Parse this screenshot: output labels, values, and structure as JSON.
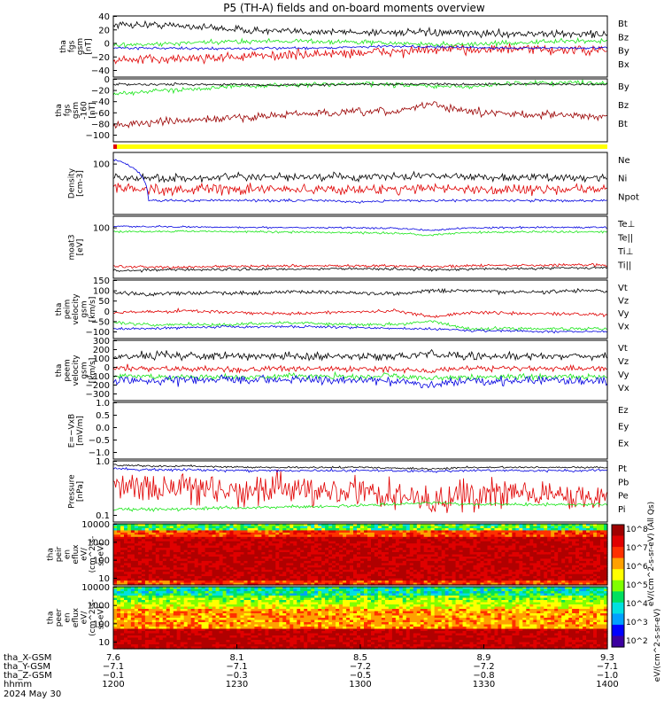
{
  "title": "P5 (TH-A) fields and on-board moments overview",
  "footer_date": "2024 May 30",
  "colors": {
    "black": "#000000",
    "red": "#e00000",
    "darkred": "#9a0000",
    "green": "#19e619",
    "blue": "#0000e0",
    "yellow": "#ffff00"
  },
  "chart_data": [
    {
      "type": "line",
      "ylabel": [
        "tha",
        "fgs",
        "gsm",
        "[nT]"
      ],
      "ytick_labels": [
        "40",
        "20",
        "0",
        "−20",
        "−40"
      ],
      "ylim": [
        -50,
        55
      ],
      "series": [
        {
          "name": "Bt",
          "color": "black",
          "base": [
            40,
            40,
            38,
            34,
            30,
            28,
            28,
            27,
            27,
            26,
            25,
            25,
            24,
            24,
            24
          ],
          "noise": 6
        },
        {
          "name": "Bz",
          "color": "red",
          "base": [
            -22,
            -20,
            -18,
            -16,
            -14,
            -12,
            -10,
            -8,
            -6,
            -4,
            -2,
            -2,
            -3,
            -4,
            -5
          ],
          "noise": 8
        },
        {
          "name": "By",
          "color": "green",
          "base": [
            5,
            6,
            8,
            10,
            12,
            12,
            11,
            10,
            8,
            6,
            6,
            8,
            10,
            12,
            12
          ],
          "noise": 4
        },
        {
          "name": "Bx",
          "color": "blue",
          "base": [
            0,
            0,
            -1,
            -1,
            -1,
            0,
            0,
            2,
            3,
            2,
            1,
            0,
            0,
            0,
            0
          ],
          "noise": 2
        }
      ]
    },
    {
      "type": "line",
      "ylabel": [
        "tha",
        "fgs",
        "gsm",
        "-160",
        "[nT]"
      ],
      "ytick_labels": [
        "0",
        "−20",
        "−40",
        "−60",
        "−80",
        "−100"
      ],
      "ylim": [
        -110,
        5
      ],
      "series": [
        {
          "name": "By",
          "color": "green",
          "base": [
            -22,
            -18,
            -14,
            -10,
            -8,
            -6,
            -5,
            -4,
            -6,
            -8,
            -10,
            -4,
            -2,
            -2,
            -2
          ],
          "noise": 4
        },
        {
          "name": "Bz",
          "color": "darkred",
          "base": [
            -80,
            -75,
            -72,
            -68,
            -64,
            -60,
            -58,
            -56,
            -55,
            -40,
            -55,
            -58,
            -60,
            -62,
            -64
          ],
          "noise": 7
        },
        {
          "name": "Bt",
          "color": "black",
          "base": [
            -5,
            -5,
            -5,
            -5,
            -6,
            -6,
            -6,
            -5,
            -5,
            -4,
            -5,
            -5,
            -5,
            -5,
            -5
          ],
          "noise": 2
        }
      ]
    },
    {
      "type": "line",
      "ylabel": [
        "Density",
        "[cm-3]"
      ],
      "ytick_labels": [
        "100"
      ],
      "yscale": "log",
      "ylim": [
        0.5,
        150
      ],
      "series": [
        {
          "name": "Ne",
          "color": "red",
          "base": [
            6,
            5,
            5,
            5,
            5,
            5,
            5,
            5,
            5,
            6,
            5,
            5,
            5,
            5,
            5
          ],
          "noise": 0.2
        },
        {
          "name": "Ni",
          "color": "black",
          "base": [
            15,
            14,
            14,
            15,
            15,
            15,
            16,
            15,
            16,
            18,
            16,
            15,
            15,
            15,
            15
          ],
          "noise": 0.15
        },
        {
          "name": "Npot",
          "color": "blue",
          "base": [
            80,
            1.8,
            1.8,
            1.8,
            1.8,
            1.8,
            1.8,
            1.6,
            1.8,
            1.8,
            1.8,
            1.8,
            1.8,
            1.8,
            1.8
          ],
          "noise": 0.05
        }
      ]
    },
    {
      "type": "line",
      "ylabel": [
        "moat3",
        "[eV]"
      ],
      "ytick_labels": [
        "100"
      ],
      "yscale": "log",
      "ylim": [
        5,
        20000
      ],
      "series": [
        {
          "name": "Te⊥",
          "color": "red",
          "base": [
            25,
            22,
            22,
            24,
            25,
            25,
            26,
            27,
            26,
            24,
            26,
            28,
            28,
            30,
            30
          ],
          "noise": 0.08
        },
        {
          "name": "Te||",
          "color": "black",
          "base": [
            14,
            15,
            16,
            16,
            17,
            17,
            18,
            18,
            17,
            16,
            17,
            18,
            19,
            20,
            20
          ],
          "noise": 0.08
        },
        {
          "name": "Ti⊥",
          "color": "blue",
          "base": [
            5000,
            5000,
            4800,
            4600,
            4500,
            4500,
            4400,
            4300,
            4000,
            3000,
            4200,
            4400,
            4500,
            4500,
            4600
          ],
          "noise": 0.05
        },
        {
          "name": "Ti||",
          "color": "green",
          "base": [
            2500,
            2600,
            2700,
            2600,
            2500,
            2400,
            2300,
            2200,
            2000,
            1600,
            2300,
            2400,
            2500,
            2500,
            2500
          ],
          "noise": 0.06
        }
      ]
    },
    {
      "type": "line",
      "ylabel": [
        "tha",
        "peim",
        "velocity",
        "gsm",
        "[km/s]"
      ],
      "ytick_labels": [
        "150",
        "100",
        "50",
        "0",
        "−50",
        "−100"
      ],
      "ylim": [
        -130,
        165
      ],
      "series": [
        {
          "name": "Vt",
          "color": "black",
          "base": [
            100,
            95,
            100,
            100,
            100,
            105,
            105,
            100,
            95,
            110,
            110,
            105,
            105,
            110,
            110
          ],
          "noise": 10
        },
        {
          "name": "Vz",
          "color": "red",
          "base": [
            0,
            5,
            10,
            5,
            0,
            -5,
            0,
            5,
            10,
            -20,
            0,
            0,
            -5,
            -5,
            -10
          ],
          "noise": 8
        },
        {
          "name": "Vy",
          "color": "green",
          "base": [
            -50,
            -60,
            -60,
            -60,
            -55,
            -50,
            -55,
            -60,
            -60,
            -40,
            -80,
            -80,
            -80,
            -80,
            -80
          ],
          "noise": 8
        },
        {
          "name": "Vx",
          "color": "blue",
          "base": [
            -80,
            -80,
            -75,
            -70,
            -70,
            -70,
            -70,
            -75,
            -80,
            -80,
            -90,
            -90,
            -95,
            -95,
            -95
          ],
          "noise": 6
        }
      ]
    },
    {
      "type": "line",
      "ylabel": [
        "tha",
        "peem",
        "velocity",
        "gsm",
        "[km/s]"
      ],
      "ytick_labels": [
        "300",
        "200",
        "100",
        "0",
        "−100",
        "−200",
        "−300"
      ],
      "ylim": [
        -320,
        320
      ],
      "series": [
        {
          "name": "Vt",
          "color": "black",
          "base": [
            150,
            160,
            160,
            150,
            150,
            150,
            150,
            150,
            150,
            170,
            150,
            150,
            150,
            150,
            150
          ],
          "noise": 40
        },
        {
          "name": "Vz",
          "color": "red",
          "base": [
            30,
            20,
            20,
            10,
            10,
            20,
            20,
            20,
            10,
            0,
            20,
            20,
            20,
            20,
            20
          ],
          "noise": 30
        },
        {
          "name": "Vy",
          "color": "green",
          "base": [
            -60,
            -60,
            -70,
            -70,
            -70,
            -60,
            -60,
            -60,
            -60,
            -80,
            -70,
            -70,
            -70,
            -70,
            -70
          ],
          "noise": 30
        },
        {
          "name": "Vx",
          "color": "blue",
          "base": [
            -110,
            -110,
            -100,
            -100,
            -100,
            -100,
            -100,
            -100,
            -110,
            -150,
            -110,
            -110,
            -110,
            -110,
            -110
          ],
          "noise": 45
        }
      ]
    },
    {
      "type": "line",
      "ylabel": [
        "E=−VxB",
        "[mV/m]"
      ],
      "ytick_labels": [
        "1.0",
        "0.5",
        "0.0",
        "−0.5",
        "−1.0"
      ],
      "ylim": [
        -1,
        1
      ],
      "series": [
        {
          "name": "Ez",
          "color": "red",
          "base": [],
          "noise": 0
        },
        {
          "name": "Ey",
          "color": "green",
          "base": [],
          "noise": 0
        },
        {
          "name": "Ex",
          "color": "blue",
          "base": [],
          "noise": 0
        }
      ]
    },
    {
      "type": "line",
      "ylabel": [
        "Pressure",
        "[nPa]"
      ],
      "ytick_labels": [
        "1.0",
        "0.1"
      ],
      "yscale": "log",
      "ylim": [
        0.02,
        1.6
      ],
      "series": [
        {
          "name": "Pt",
          "color": "black",
          "base": [
            1.2,
            1.1,
            1.1,
            1.05,
            1.0,
            1.0,
            1.0,
            1.0,
            0.95,
            0.9,
            1.0,
            1.0,
            1.0,
            1.0,
            1.0
          ],
          "noise": 0.03
        },
        {
          "name": "Pb",
          "color": "red",
          "base": [
            0.3,
            0.25,
            0.2,
            0.2,
            0.18,
            0.18,
            0.2,
            0.18,
            0.15,
            0.08,
            0.15,
            0.15,
            0.14,
            0.13,
            0.13
          ],
          "noise": 0.5
        },
        {
          "name": "Pe",
          "color": "green",
          "base": [
            0.05,
            0.05,
            0.05,
            0.055,
            0.055,
            0.06,
            0.06,
            0.065,
            0.07,
            0.08,
            0.07,
            0.07,
            0.07,
            0.07,
            0.07
          ],
          "noise": 0.05
        },
        {
          "name": "Pi",
          "color": "blue",
          "base": [
            0.9,
            0.85,
            0.85,
            0.8,
            0.8,
            0.8,
            0.8,
            0.8,
            0.78,
            0.75,
            0.8,
            0.8,
            0.8,
            0.8,
            0.8
          ],
          "noise": 0.04
        }
      ]
    },
    {
      "type": "heatmap",
      "ylabel": [
        "tha",
        "peir",
        "en",
        "eflux",
        "eV/",
        "(cm^2-s-",
        "sr-eV)"
      ],
      "ytick_labels": [
        "10000",
        "1000",
        "100",
        "10"
      ],
      "yscale": "log",
      "ylim": [
        5,
        20000
      ]
    },
    {
      "type": "heatmap",
      "ylabel": [
        "tha",
        "peer",
        "en",
        "eflux",
        "eV/",
        "(cm^2-s-",
        "sr-eV)"
      ],
      "ytick_labels": [
        "10000",
        "1000",
        "100",
        "10"
      ],
      "yscale": "log",
      "ylim": [
        5,
        20000
      ]
    }
  ],
  "colorbar": {
    "tick_labels": [
      "10^8",
      "10^7",
      "10^6",
      "10^5",
      "10^4",
      "10^3",
      "10^2"
    ],
    "label_top": "eV/(cm^2-s-sr-eV) (All Qs)",
    "label_bottom": "eV/(cm^2-s-sr-eV)"
  },
  "x_axis": {
    "tick_positions_label": [
      "7.6",
      "8.1",
      "8.5",
      "8.9",
      "9.3"
    ],
    "rows": [
      {
        "name": "tha_X-GSM",
        "values": [
          "7.6",
          "8.1",
          "8.5",
          "8.9",
          "9.3"
        ]
      },
      {
        "name": "tha_Y-GSM",
        "values": [
          "−7.1",
          "−7.1",
          "−7.2",
          "−7.2",
          "−7.1"
        ]
      },
      {
        "name": "tha_Z-GSM",
        "values": [
          "−0.1",
          "−0.3",
          "−0.5",
          "−0.8",
          "−1.0"
        ]
      },
      {
        "name": "hhmm",
        "values": [
          "1200",
          "1230",
          "1300",
          "1330",
          "1400"
        ]
      }
    ]
  }
}
